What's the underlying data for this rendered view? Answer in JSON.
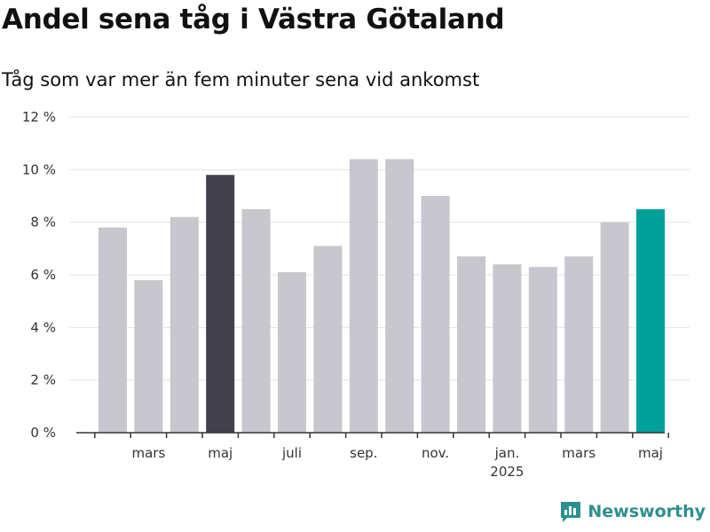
{
  "header": {
    "title": "Andel sena tåg i Västra Götaland",
    "subtitle": "Tåg som var mer än fem minuter sena vid ankomst"
  },
  "brand": {
    "name": "Newsworthy",
    "icon": "bar-chart-logo-icon",
    "color": "#2e8f8f"
  },
  "colors": {
    "default_bar": "#c8c7cd",
    "highlight_last_year": "#42414d",
    "highlight_current": "#00a19a",
    "grid": "#e3e3e3",
    "axis": "#333333"
  },
  "chart_data": {
    "type": "bar",
    "title": "Andel sena tåg i Västra Götaland",
    "subtitle": "Tåg som var mer än fem minuter sena vid ankomst",
    "xlabel": "",
    "ylabel": "",
    "ylim": [
      0,
      12
    ],
    "yticks": [
      "0 %",
      "2 %",
      "4 %",
      "6 %",
      "8 %",
      "10 %",
      "12 %"
    ],
    "grid": true,
    "legend": "none",
    "categories": [
      "2024-02",
      "2024-03",
      "2024-04",
      "2024-05",
      "2024-06",
      "2024-07",
      "2024-08",
      "2024-09",
      "2024-10",
      "2024-11",
      "2024-12",
      "2025-01",
      "2025-02",
      "2025-03",
      "2025-04",
      "2025-05"
    ],
    "values": [
      7.8,
      5.8,
      8.2,
      9.8,
      8.5,
      6.1,
      7.1,
      10.4,
      10.4,
      9.0,
      6.7,
      6.4,
      6.3,
      6.7,
      8.0,
      8.5
    ],
    "highlight": {
      "2024-05": "#42414d",
      "2025-05": "#00a19a"
    },
    "xtick_labels": [
      {
        "at": "2024-03",
        "label": "mars"
      },
      {
        "at": "2024-05",
        "label": "maj"
      },
      {
        "at": "2024-07",
        "label": "juli"
      },
      {
        "at": "2024-09",
        "label": "sep."
      },
      {
        "at": "2024-11",
        "label": "nov."
      },
      {
        "at": "2025-01",
        "label": "jan.",
        "sublabel": "2025"
      },
      {
        "at": "2025-03",
        "label": "mars"
      },
      {
        "at": "2025-05",
        "label": "maj"
      }
    ]
  }
}
